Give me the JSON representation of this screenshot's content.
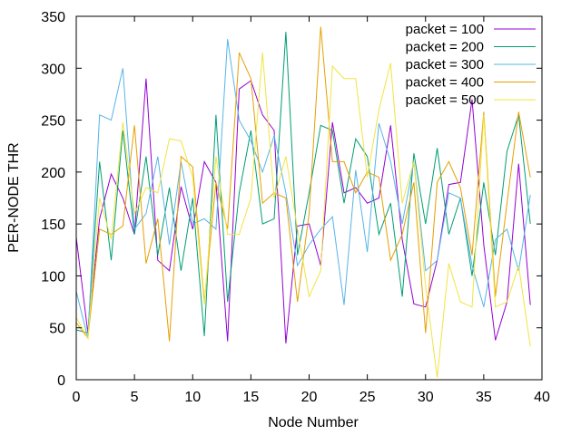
{
  "chart_data": {
    "type": "line",
    "xlabel": "Node Number",
    "ylabel": "PER-NODE THR",
    "xlim": [
      0,
      40
    ],
    "ylim": [
      0,
      350
    ],
    "xticks": [
      0,
      5,
      10,
      15,
      20,
      25,
      30,
      35,
      40
    ],
    "yticks": [
      0,
      50,
      100,
      150,
      200,
      250,
      300,
      350
    ],
    "grid": false,
    "legend_position": "top-right",
    "x": [
      0,
      1,
      2,
      3,
      4,
      5,
      6,
      7,
      8,
      9,
      10,
      11,
      12,
      13,
      14,
      15,
      16,
      17,
      18,
      19,
      20,
      21,
      22,
      23,
      24,
      25,
      26,
      27,
      28,
      29,
      30,
      31,
      32,
      33,
      34,
      35,
      36,
      37,
      38,
      39
    ],
    "series": [
      {
        "name": "packet = 100",
        "color": "#9400d3",
        "values": [
          137,
          45,
          155,
          198,
          175,
          140,
          290,
          115,
          105,
          186,
          145,
          210,
          190,
          37,
          280,
          288,
          255,
          240,
          35,
          148,
          150,
          110,
          248,
          180,
          185,
          170,
          175,
          245,
          135,
          73,
          70,
          115,
          188,
          190,
          270,
          130,
          38,
          75,
          208,
          72
        ]
      },
      {
        "name": "packet = 200",
        "color": "#009e73",
        "values": [
          48,
          45,
          210,
          115,
          240,
          140,
          215,
          120,
          185,
          105,
          175,
          42,
          255,
          75,
          180,
          240,
          150,
          155,
          335,
          120,
          180,
          245,
          240,
          170,
          232,
          215,
          140,
          170,
          80,
          218,
          150,
          223,
          140,
          175,
          100,
          190,
          120,
          220,
          255,
          150
        ]
      },
      {
        "name": "packet = 300",
        "color": "#56b4e9",
        "values": [
          85,
          40,
          255,
          250,
          300,
          145,
          160,
          215,
          130,
          210,
          150,
          155,
          145,
          328,
          250,
          230,
          200,
          235,
          180,
          110,
          130,
          145,
          157,
          72,
          202,
          123,
          247,
          210,
          150,
          210,
          105,
          115,
          180,
          175,
          110,
          70,
          135,
          145,
          105,
          178
        ]
      },
      {
        "name": "packet = 400",
        "color": "#e69f00",
        "values": [
          55,
          40,
          145,
          140,
          148,
          245,
          112,
          155,
          37,
          215,
          205,
          75,
          190,
          145,
          315,
          290,
          170,
          180,
          175,
          75,
          160,
          340,
          210,
          210,
          180,
          200,
          195,
          115,
          140,
          190,
          45,
          190,
          210,
          185,
          120,
          258,
          80,
          170,
          258,
          195
        ]
      },
      {
        "name": "packet = 500",
        "color": "#f0e442",
        "values": [
          60,
          40,
          175,
          135,
          248,
          160,
          185,
          180,
          232,
          230,
          195,
          72,
          215,
          140,
          140,
          175,
          315,
          175,
          215,
          145,
          80,
          105,
          302,
          290,
          290,
          195,
          260,
          305,
          170,
          210,
          90,
          2,
          112,
          75,
          70,
          255,
          70,
          75,
          110,
          32
        ]
      }
    ]
  }
}
